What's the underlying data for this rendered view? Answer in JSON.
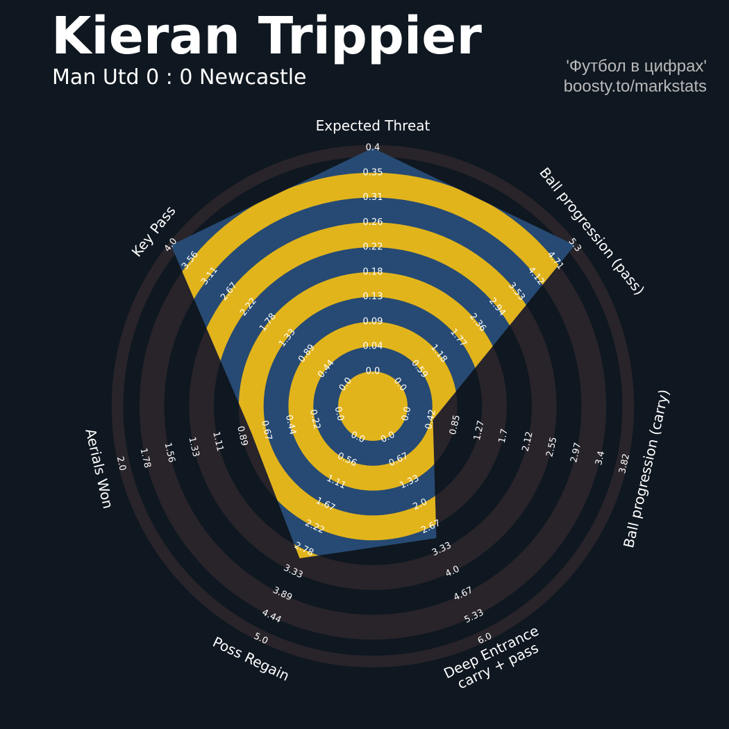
{
  "header": {
    "title": "Kieran Trippier",
    "subtitle": "Man Utd 0 : 0 Newcastle",
    "credit_line1": "'Футбол в цифрах'",
    "credit_line2": "boosty.to/markstats"
  },
  "colors": {
    "background": "#0f1720",
    "ring_band": "#28242a",
    "fill": "#264a73",
    "highlight_band": "#e2b41c"
  },
  "chart_data": {
    "type": "radar",
    "title": "Kieran Trippier",
    "subtitle": "Man Utd 0 : 0 Newcastle",
    "axes": [
      {
        "label": "Expected Threat",
        "min": 0.0,
        "max": 0.4,
        "value": 0.4,
        "ticks": [
          "0.0",
          "0.04",
          "0.09",
          "0.13",
          "0.18",
          "0.22",
          "0.26",
          "0.31",
          "0.35",
          "0.4"
        ]
      },
      {
        "label": "Ball progression (pass)",
        "min": 0.0,
        "max": 5.3,
        "value": 5.3,
        "ticks": [
          "0.0",
          "0.59",
          "1.18",
          "1.77",
          "2.36",
          "2.94",
          "3.53",
          "4.12",
          "4.71",
          "5.3"
        ]
      },
      {
        "label": "Ball progression (carry)",
        "min": 0.0,
        "max": 3.82,
        "value": 0.46,
        "ticks": [
          "0.0",
          "0.42",
          "0.85",
          "1.27",
          "1.7",
          "2.12",
          "2.55",
          "2.97",
          "3.4",
          "3.82"
        ]
      },
      {
        "label": "Deep Entrance\ncarry + pass",
        "min": 0.0,
        "max": 6.0,
        "value": 3.0,
        "ticks": [
          "0.0",
          "0.67",
          "1.33",
          "2.0",
          "2.67",
          "3.33",
          "4.0",
          "4.67",
          "5.33",
          "6.0"
        ]
      },
      {
        "label": "Poss Regain",
        "min": 0.0,
        "max": 5.0,
        "value": 3.0,
        "ticks": [
          "0.0",
          "0.56",
          "1.11",
          "1.67",
          "2.22",
          "2.78",
          "3.33",
          "3.89",
          "4.44",
          "5.0"
        ]
      },
      {
        "label": "Aerials Won",
        "min": 0.0,
        "max": 2.0,
        "value": 0.8,
        "ticks": [
          "0.0",
          "0.22",
          "0.44",
          "0.67",
          "0.89",
          "1.11",
          "1.33",
          "1.56",
          "1.78",
          "2.0"
        ]
      },
      {
        "label": "Key Pass",
        "min": 0.0,
        "max": 4.0,
        "value": 4.0,
        "ticks": [
          "0.0",
          "0.44",
          "0.89",
          "1.33",
          "1.78",
          "2.22",
          "2.67",
          "3.11",
          "3.56",
          "4.0"
        ]
      }
    ],
    "grid": "alternating ring bands",
    "legend": "none"
  }
}
